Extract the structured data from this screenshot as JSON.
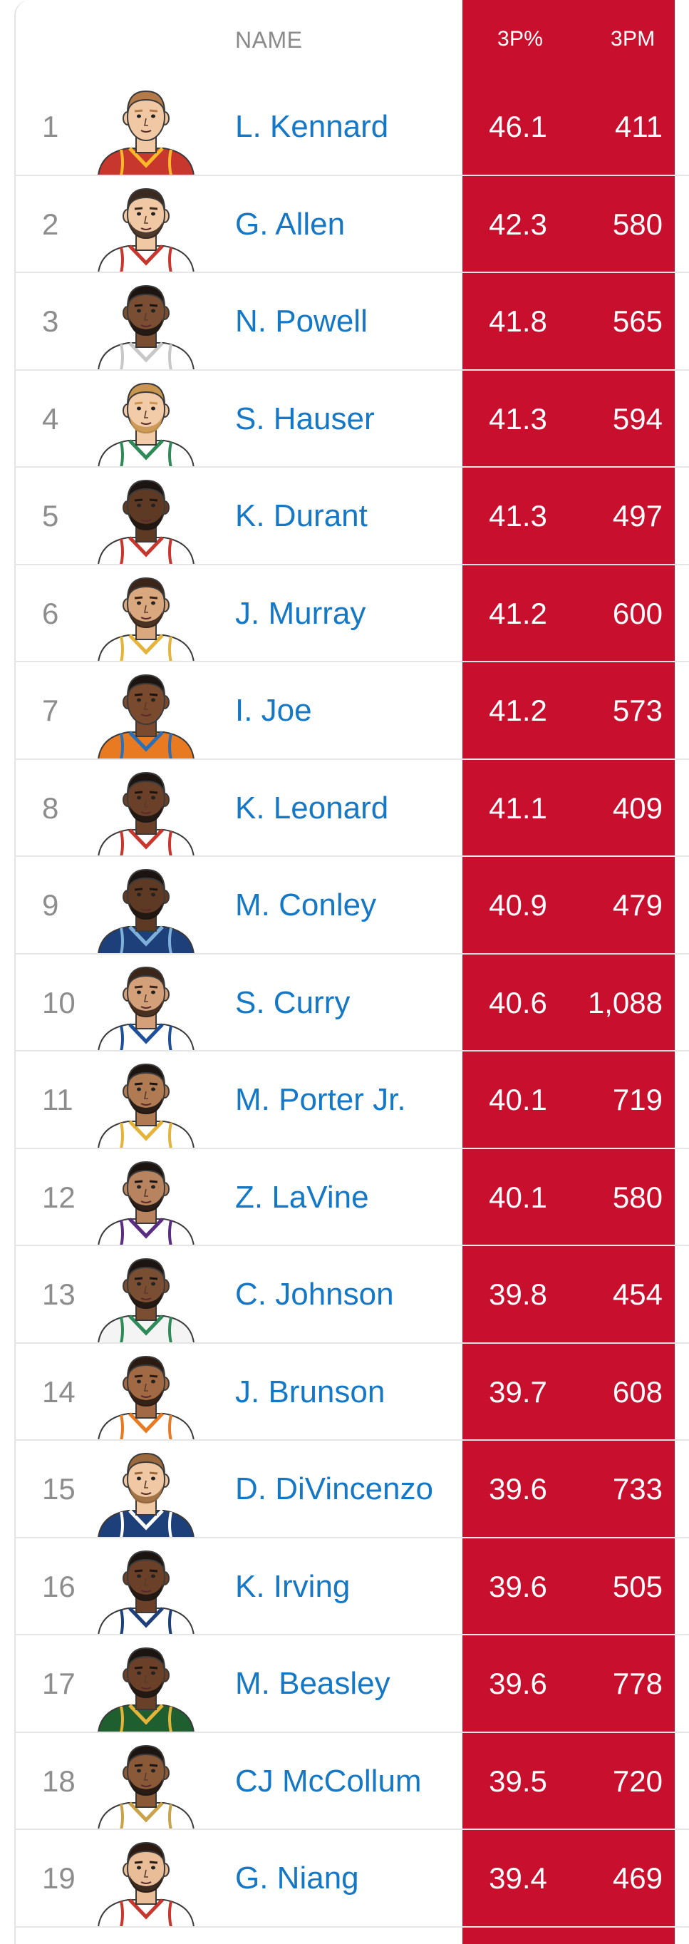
{
  "header": {
    "name": "NAME",
    "three_pct": "3P%",
    "three_pm": "3PM"
  },
  "colors": {
    "accent": "#c8102e",
    "name_link": "#1478c6",
    "rank": "#8d8d8d"
  },
  "players": [
    {
      "rank": "1",
      "name": "L. Kennard",
      "p3": "46.1",
      "pm3": "411",
      "skin": "#f0c8a4",
      "hair": "#b57a4a",
      "jersey": "#c8372d",
      "trim": "#fdb927",
      "beard": false
    },
    {
      "rank": "2",
      "name": "G. Allen",
      "p3": "42.3",
      "pm3": "580",
      "skin": "#f0c8a4",
      "hair": "#3b2a20",
      "jersey": "#ffffff",
      "trim": "#c8372d",
      "beard": true
    },
    {
      "rank": "3",
      "name": "N. Powell",
      "p3": "41.8",
      "pm3": "565",
      "skin": "#7a4e32",
      "hair": "#1c1410",
      "jersey": "#ffffff",
      "trim": "#c8c8c8",
      "beard": true
    },
    {
      "rank": "4",
      "name": "S. Hauser",
      "p3": "41.3",
      "pm3": "594",
      "skin": "#f2cba9",
      "hair": "#c9954f",
      "jersey": "#ffffff",
      "trim": "#2e8b57",
      "beard": true
    },
    {
      "rank": "5",
      "name": "K. Durant",
      "p3": "41.3",
      "pm3": "497",
      "skin": "#5e3a24",
      "hair": "#1c1410",
      "jersey": "#ffffff",
      "trim": "#c8372d",
      "beard": true
    },
    {
      "rank": "6",
      "name": "J. Murray",
      "p3": "41.2",
      "pm3": "600",
      "skin": "#d9a87e",
      "hair": "#3a2518",
      "jersey": "#ffffff",
      "trim": "#e6b33a",
      "beard": true
    },
    {
      "rank": "7",
      "name": "I. Joe",
      "p3": "41.2",
      "pm3": "573",
      "skin": "#7a4a2e",
      "hair": "#1c1410",
      "jersey": "#e87a22",
      "trim": "#2a6fba",
      "beard": false
    },
    {
      "rank": "8",
      "name": "K. Leonard",
      "p3": "41.1",
      "pm3": "409",
      "skin": "#6a4028",
      "hair": "#1c1410",
      "jersey": "#ffffff",
      "trim": "#c8372d",
      "beard": true
    },
    {
      "rank": "9",
      "name": "M. Conley",
      "p3": "40.9",
      "pm3": "479",
      "skin": "#5e3a24",
      "hair": "#1c1410",
      "jersey": "#1d3f7a",
      "trim": "#7fb0d8",
      "beard": true
    },
    {
      "rank": "10",
      "name": "S. Curry",
      "p3": "40.6",
      "pm3": "1,088",
      "skin": "#d3a07a",
      "hair": "#3a2518",
      "jersey": "#ffffff",
      "trim": "#1d4f9a",
      "beard": true
    },
    {
      "rank": "11",
      "name": "M. Porter Jr.",
      "p3": "40.1",
      "pm3": "719",
      "skin": "#b07a52",
      "hair": "#1c1410",
      "jersey": "#ffffff",
      "trim": "#e6b33a",
      "beard": true
    },
    {
      "rank": "12",
      "name": "Z. LaVine",
      "p3": "40.1",
      "pm3": "580",
      "skin": "#b88460",
      "hair": "#1c1410",
      "jersey": "#ffffff",
      "trim": "#5a2d82",
      "beard": true
    },
    {
      "rank": "13",
      "name": "C. Johnson",
      "p3": "39.8",
      "pm3": "454",
      "skin": "#7a4e32",
      "hair": "#1c1410",
      "jersey": "#f4f4f4",
      "trim": "#2e8b57",
      "beard": true
    },
    {
      "rank": "14",
      "name": "J. Brunson",
      "p3": "39.7",
      "pm3": "608",
      "skin": "#a26a44",
      "hair": "#2a1a12",
      "jersey": "#ffffff",
      "trim": "#e87a22",
      "beard": true
    },
    {
      "rank": "15",
      "name": "D. DiVincenzo",
      "p3": "39.6",
      "pm3": "733",
      "skin": "#f0c8a4",
      "hair": "#9a6a3e",
      "jersey": "#1d3f7a",
      "trim": "#ffffff",
      "beard": true
    },
    {
      "rank": "16",
      "name": "K. Irving",
      "p3": "39.6",
      "pm3": "505",
      "skin": "#6a4028",
      "hair": "#1c1410",
      "jersey": "#ffffff",
      "trim": "#1d3f7a",
      "beard": true
    },
    {
      "rank": "17",
      "name": "M. Beasley",
      "p3": "39.6",
      "pm3": "778",
      "skin": "#6a4028",
      "hair": "#1c1410",
      "jersey": "#1f5f2f",
      "trim": "#e6b33a",
      "beard": true
    },
    {
      "rank": "18",
      "name": "CJ McCollum",
      "p3": "39.5",
      "pm3": "720",
      "skin": "#8a5a38",
      "hair": "#1c1410",
      "jersey": "#ffffff",
      "trim": "#c9a24a",
      "beard": true
    },
    {
      "rank": "19",
      "name": "G. Niang",
      "p3": "39.4",
      "pm3": "469",
      "skin": "#e8bd98",
      "hair": "#2a1a12",
      "jersey": "#ffffff",
      "trim": "#c8372d",
      "beard": true
    }
  ]
}
